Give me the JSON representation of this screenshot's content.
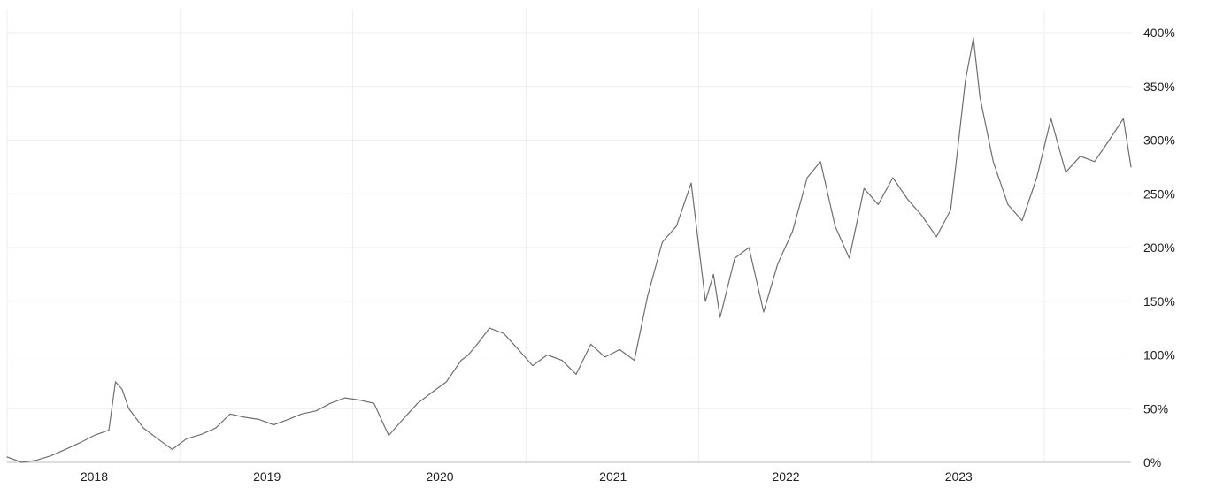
{
  "chart_data": {
    "type": "line",
    "title": "",
    "xlabel": "",
    "ylabel": "",
    "x_range": [
      "2017-07-01",
      "2023-12-31"
    ],
    "ylim": [
      0,
      400
    ],
    "y_unit": "%",
    "y_ticks": [
      0,
      50,
      100,
      150,
      200,
      250,
      300,
      350,
      400
    ],
    "y_tick_labels": [
      "0%",
      "50%",
      "100%",
      "150%",
      "200%",
      "250%",
      "300%",
      "350%",
      "400%"
    ],
    "x_ticks": [
      "2018-01-01",
      "2019-01-01",
      "2020-01-01",
      "2021-01-01",
      "2022-01-01",
      "2023-01-01"
    ],
    "x_tick_labels": [
      "2018",
      "2019",
      "2020",
      "2021",
      "2022",
      "2023"
    ],
    "grid": true,
    "legend": "none",
    "colors": {
      "line": "#6f6f6f",
      "grid": "#eeeeee",
      "axis": "#bdbdbd",
      "text": "#222222"
    },
    "series": [
      {
        "x": [
          "2017-07-01",
          "2017-08-01",
          "2017-09-01",
          "2017-10-01",
          "2017-11-01",
          "2017-12-01",
          "2018-01-01",
          "2018-02-01",
          "2018-02-15",
          "2018-03-01",
          "2018-03-15",
          "2018-04-15",
          "2018-05-15",
          "2018-06-15",
          "2018-07-15",
          "2018-08-15",
          "2018-09-15",
          "2018-10-15",
          "2018-11-15",
          "2018-12-15",
          "2019-01-15",
          "2019-02-15",
          "2019-03-15",
          "2019-04-15",
          "2019-05-15",
          "2019-06-15",
          "2019-07-15",
          "2019-08-15",
          "2019-09-15",
          "2019-10-15",
          "2019-11-15",
          "2019-12-15",
          "2020-01-15",
          "2020-02-15",
          "2020-03-01",
          "2020-03-20",
          "2020-04-15",
          "2020-05-15",
          "2020-06-15",
          "2020-07-15",
          "2020-08-15",
          "2020-09-15",
          "2020-10-15",
          "2020-11-15",
          "2020-12-15",
          "2021-01-15",
          "2021-02-15",
          "2021-03-15",
          "2021-04-15",
          "2021-05-15",
          "2021-06-15",
          "2021-07-15",
          "2021-08-01",
          "2021-08-15",
          "2021-09-15",
          "2021-10-15",
          "2021-11-15",
          "2021-12-15",
          "2022-01-15",
          "2022-02-15",
          "2022-03-15",
          "2022-04-15",
          "2022-05-15",
          "2022-06-15",
          "2022-07-15",
          "2022-08-15",
          "2022-09-15",
          "2022-10-15",
          "2022-11-15",
          "2022-12-15",
          "2023-01-01",
          "2023-01-15",
          "2023-02-01",
          "2023-02-15",
          "2023-03-15",
          "2023-04-15",
          "2023-05-15",
          "2023-06-15",
          "2023-07-15",
          "2023-08-15",
          "2023-09-15",
          "2023-10-15",
          "2023-11-15",
          "2023-12-15",
          "2023-12-31"
        ],
        "values": [
          5,
          0,
          2,
          6,
          12,
          18,
          25,
          30,
          75,
          68,
          50,
          32,
          22,
          12,
          22,
          26,
          32,
          45,
          42,
          40,
          35,
          40,
          45,
          48,
          55,
          60,
          58,
          55,
          25,
          40,
          55,
          65,
          75,
          95,
          100,
          110,
          125,
          120,
          105,
          90,
          100,
          95,
          82,
          110,
          98,
          105,
          95,
          155,
          205,
          220,
          260,
          150,
          175,
          135,
          190,
          200,
          140,
          185,
          215,
          265,
          280,
          220,
          190,
          255,
          240,
          265,
          245,
          230,
          210,
          235,
          300,
          355,
          395,
          340,
          280,
          240,
          225,
          265,
          320,
          270,
          285,
          280,
          300,
          320,
          275
        ]
      }
    ]
  }
}
